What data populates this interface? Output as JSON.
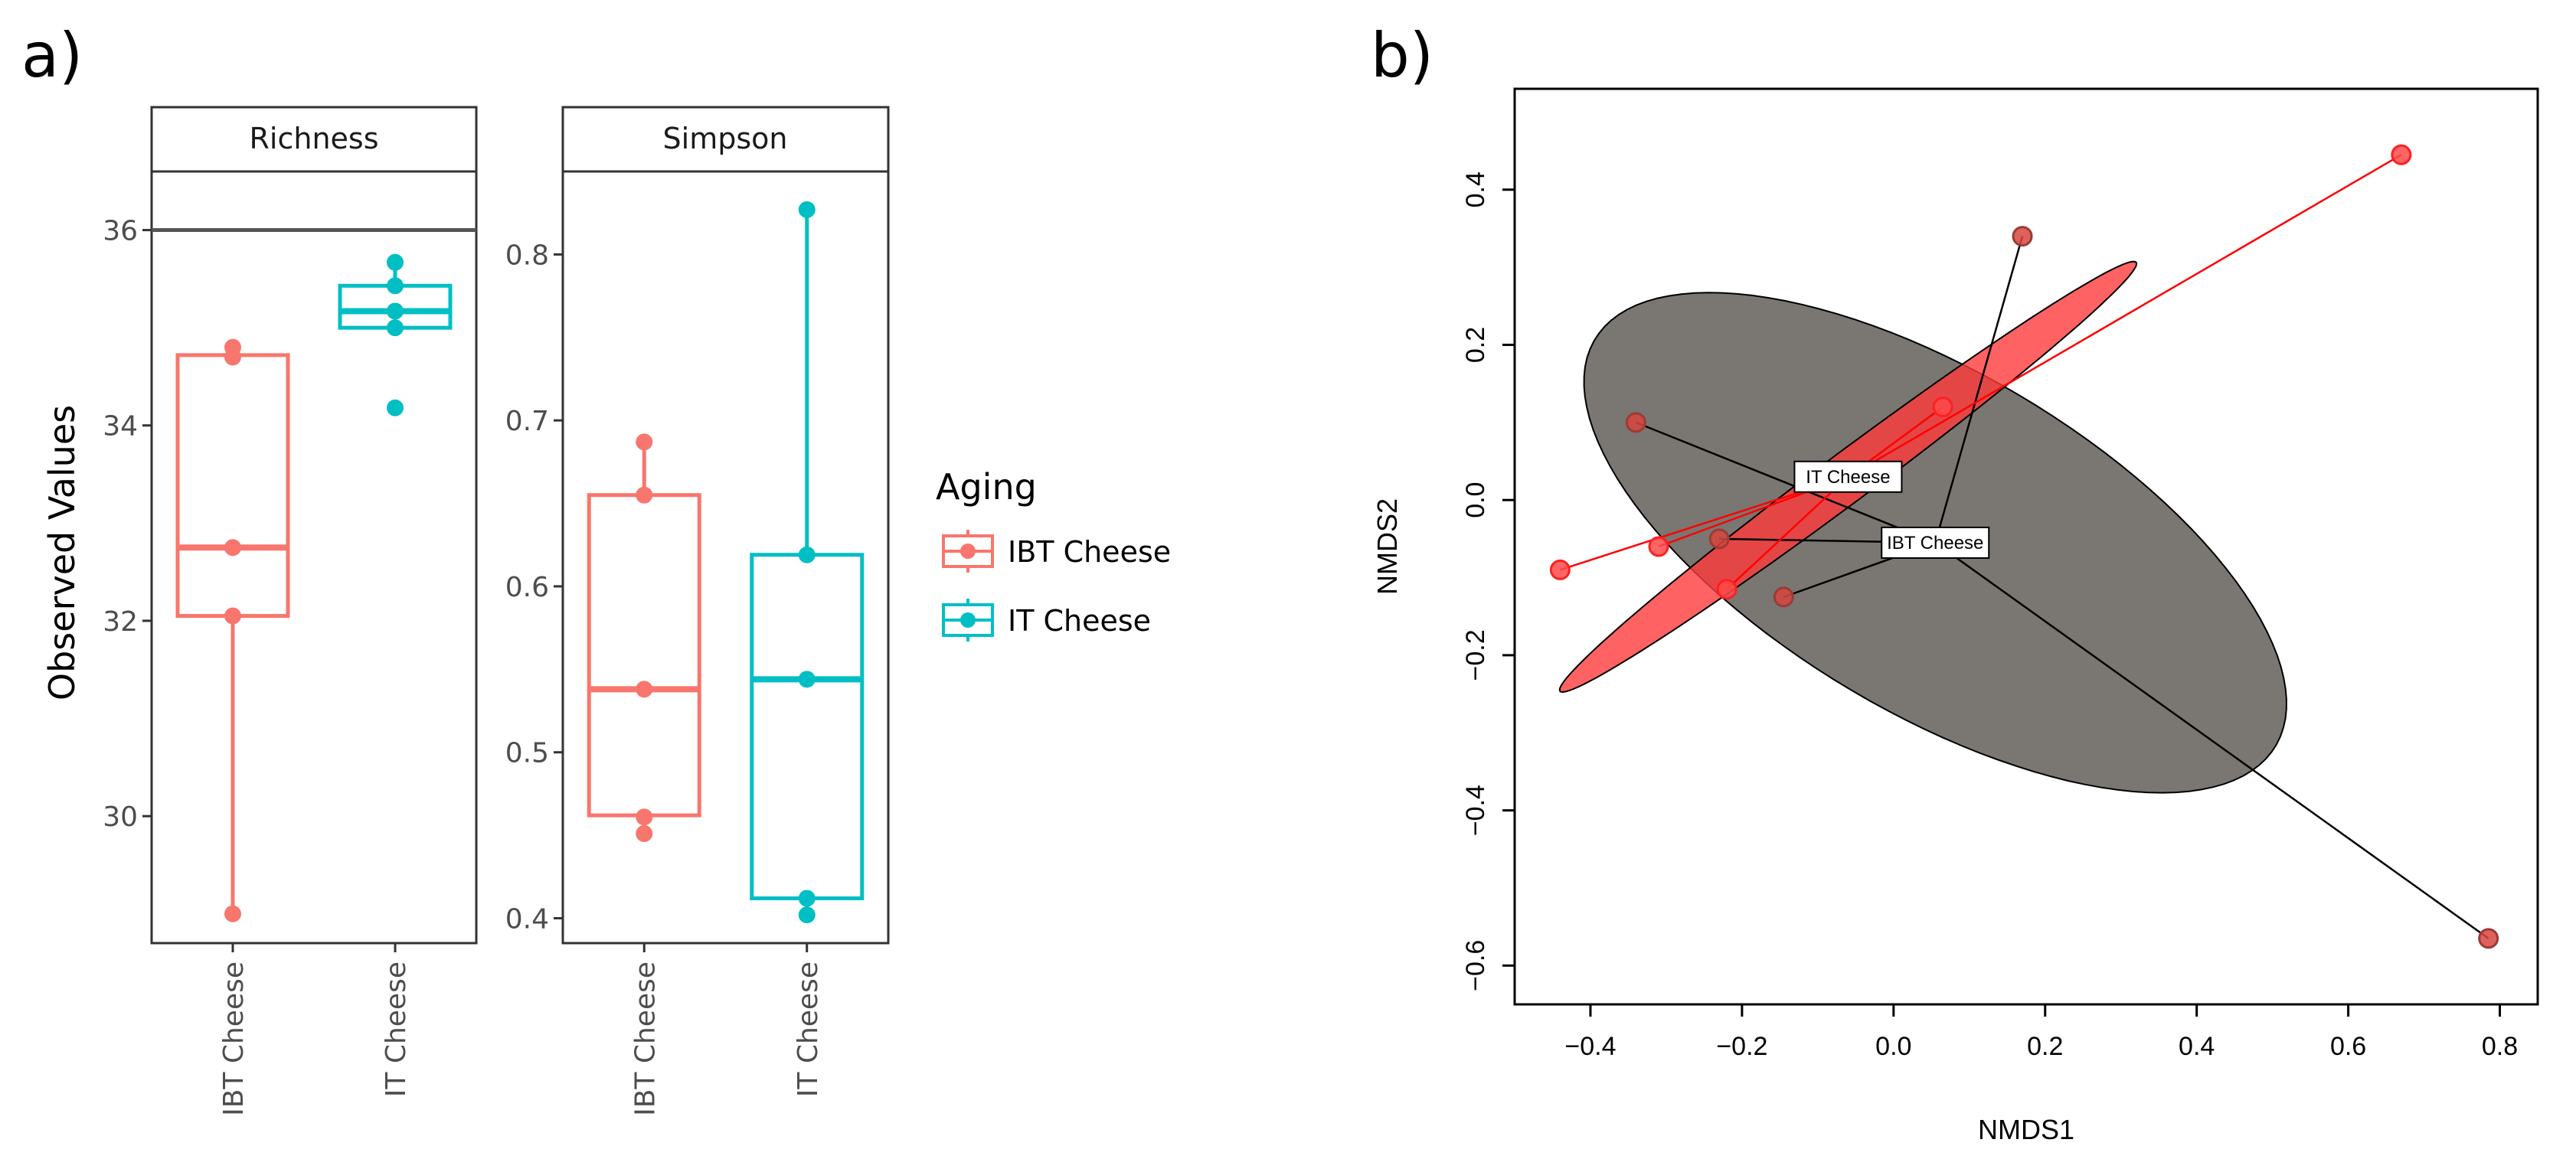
{
  "panel_a": {
    "letter": "a)",
    "y_title": "Observed Values",
    "legend": {
      "title": "Aging",
      "entries": [
        {
          "label": "IBT Cheese",
          "color": "#F8766D"
        },
        {
          "label": "IT Cheese",
          "color": "#00BFC4"
        }
      ]
    }
  },
  "panel_b": {
    "letter": "b)",
    "xlabel": "NMDS1",
    "ylabel": "NMDS2"
  },
  "chart_data": [
    {
      "type": "boxplot",
      "facet": "Richness",
      "categories": [
        "IBT Cheese",
        "IT Cheese"
      ],
      "ylim": [
        28.7,
        36.6
      ],
      "yticks": [
        30,
        32,
        34,
        36
      ],
      "hline": 36,
      "series": [
        {
          "name": "IBT Cheese",
          "color": "#F8766D",
          "box": {
            "min": 29.0,
            "q1": 32.05,
            "median": 32.75,
            "q3": 34.72,
            "max": 34.8
          },
          "points": [
            34.8,
            34.7,
            32.75,
            32.05,
            29.0
          ]
        },
        {
          "name": "IT Cheese",
          "color": "#00BFC4",
          "box": {
            "min": 35.0,
            "q1": 35.0,
            "median": 35.17,
            "q3": 35.43,
            "max": 35.67
          },
          "points": [
            35.67,
            35.43,
            35.17,
            35.0,
            34.18
          ]
        }
      ]
    },
    {
      "type": "boxplot",
      "facet": "Simpson",
      "categories": [
        "IBT Cheese",
        "IT Cheese"
      ],
      "ylim": [
        0.385,
        0.85
      ],
      "yticks": [
        0.4,
        0.5,
        0.6,
        0.7,
        0.8
      ],
      "series": [
        {
          "name": "IBT Cheese",
          "color": "#F8766D",
          "box": {
            "min": 0.451,
            "q1": 0.462,
            "median": 0.538,
            "q3": 0.655,
            "max": 0.687
          },
          "points": [
            0.687,
            0.655,
            0.538,
            0.461,
            0.451
          ]
        },
        {
          "name": "IT Cheese",
          "color": "#00BFC4",
          "box": {
            "min": 0.402,
            "q1": 0.412,
            "median": 0.544,
            "q3": 0.619,
            "max": 0.827
          },
          "points": [
            0.827,
            0.619,
            0.544,
            0.412,
            0.402
          ]
        }
      ]
    },
    {
      "type": "scatter",
      "title": "",
      "xlabel": "NMDS1",
      "ylabel": "NMDS2",
      "xlim": [
        -0.5,
        0.85
      ],
      "ylim": [
        -0.65,
        0.53
      ],
      "xticks": [
        -0.4,
        -0.2,
        0.0,
        0.2,
        0.4,
        0.6,
        0.8
      ],
      "yticks": [
        -0.6,
        -0.4,
        -0.2,
        0.0,
        0.2,
        0.4
      ],
      "series": [
        {
          "name": "IT Cheese",
          "color": "#ff3b3b",
          "stroke": "#ff0000",
          "centroid": [
            -0.06,
            0.03
          ],
          "ellipse": {
            "center": [
              -0.06,
              0.03
            ],
            "semi_major": 0.47,
            "semi_minor": 0.032,
            "angle_deg": 36
          },
          "points": [
            [
              0.67,
              0.445
            ],
            [
              0.065,
              0.12
            ],
            [
              -0.44,
              -0.09
            ],
            [
              -0.31,
              -0.06
            ],
            [
              -0.22,
              -0.115
            ]
          ]
        },
        {
          "name": "IBT Cheese",
          "color": "#7a7672",
          "stroke": "#000000",
          "centroid": [
            0.055,
            -0.055
          ],
          "ellipse": {
            "center": [
              0.055,
              -0.055
            ],
            "semi_major": 0.52,
            "semi_minor": 0.22,
            "angle_deg": -30
          },
          "points": [
            [
              0.785,
              -0.565
            ],
            [
              0.17,
              0.34
            ],
            [
              -0.34,
              0.1
            ],
            [
              -0.145,
              -0.125
            ],
            [
              -0.23,
              -0.05
            ]
          ]
        }
      ]
    }
  ]
}
